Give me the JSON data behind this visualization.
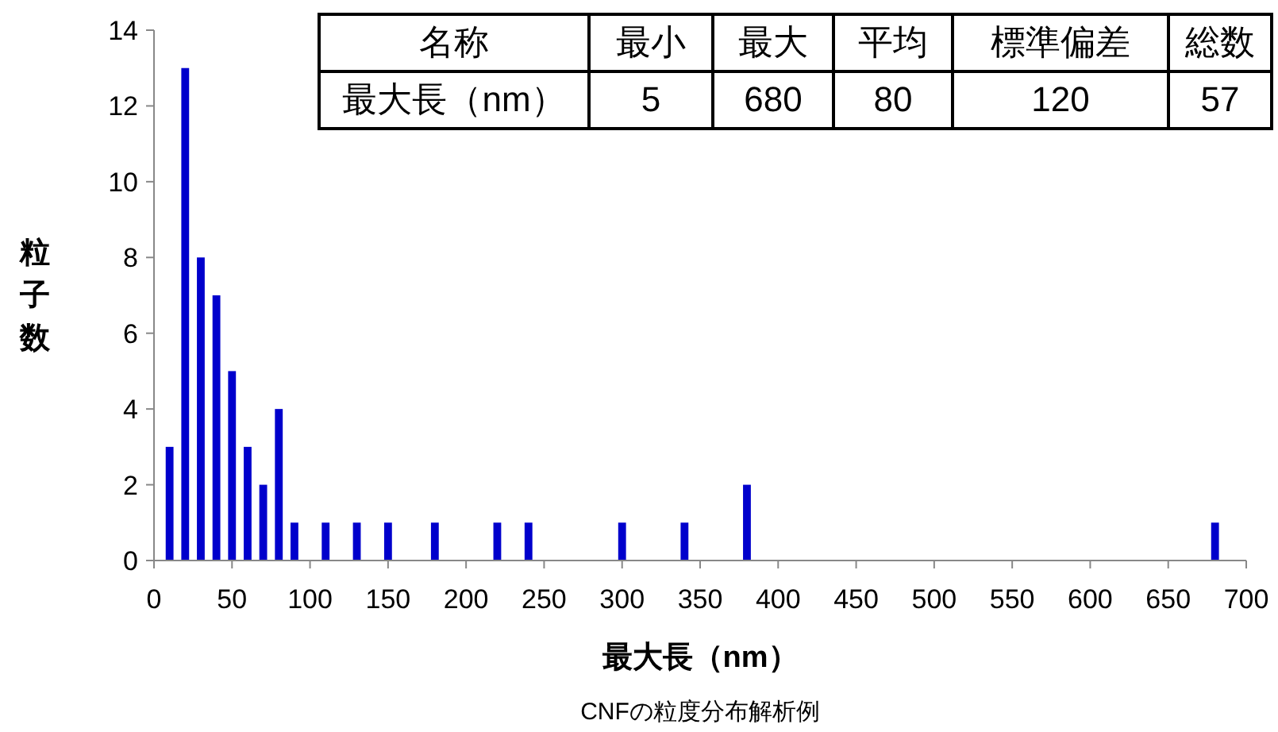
{
  "chart_data": {
    "type": "bar",
    "title": "CNFの粒度分布解析例",
    "xlabel": "最大長（nm）",
    "ylabel": "粒子数",
    "x": [
      10,
      20,
      30,
      40,
      50,
      60,
      70,
      80,
      90,
      110,
      130,
      150,
      180,
      220,
      240,
      300,
      340,
      380,
      680
    ],
    "values": [
      3,
      13,
      8,
      7,
      5,
      3,
      2,
      4,
      1,
      1,
      1,
      1,
      1,
      1,
      1,
      1,
      1,
      2,
      1
    ],
    "color": "#0000cc",
    "xlim": [
      0,
      700
    ],
    "xticks": [
      0,
      50,
      100,
      150,
      200,
      250,
      300,
      350,
      400,
      450,
      500,
      550,
      600,
      650,
      700
    ],
    "ylim": [
      0,
      14
    ],
    "yticks": [
      0,
      2,
      4,
      6,
      8,
      10,
      12,
      14
    ],
    "annotations": [
      "名称",
      "最小",
      "最大",
      "平均",
      "標準偏差",
      "総数",
      "最大長（nm）",
      "5",
      "680",
      "80",
      "120",
      "57"
    ]
  }
}
